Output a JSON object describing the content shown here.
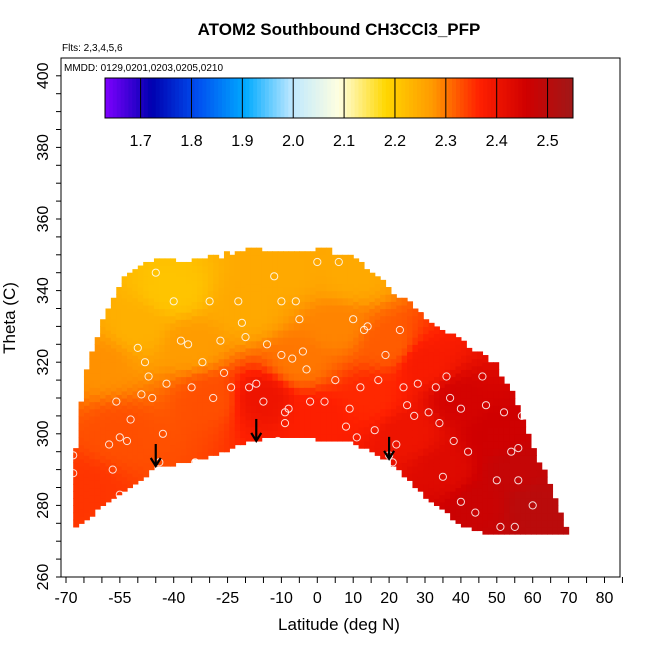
{
  "chart_data": {
    "type": "heatmap",
    "title": "ATOM2 Southbound CH3CCl3_PFP",
    "flights_note": "Flts: 2,3,4,5,6",
    "dates_note": "MMDD: 0129,0201,0203,0205,0210",
    "xlabel": "Latitude (deg N)",
    "ylabel": "Theta (C)",
    "xlim": [
      -70,
      85
    ],
    "ylim": [
      260,
      400
    ],
    "x_ticks": [
      -70,
      -55,
      -40,
      -25,
      -10,
      0,
      10,
      20,
      30,
      40,
      50,
      60,
      70,
      80
    ],
    "y_ticks": [
      260,
      280,
      300,
      320,
      340,
      360,
      380,
      400
    ],
    "colorbar": {
      "min": 1.63,
      "max": 2.55,
      "ticks": [
        1.7,
        1.8,
        1.9,
        2.0,
        2.1,
        2.2,
        2.3,
        2.4,
        2.5
      ],
      "colors": [
        "#7f00ff",
        "#0000b0",
        "#0050f0",
        "#00aaff",
        "#bfe8ff",
        "#ffffe0",
        "#ffd700",
        "#ff9900",
        "#ff2000",
        "#d00000",
        "#a01818"
      ]
    },
    "boundary": {
      "top": [
        [
          -68,
          290
        ],
        [
          -65,
          314
        ],
        [
          -60,
          330
        ],
        [
          -55,
          341
        ],
        [
          -50,
          346
        ],
        [
          -45,
          347
        ],
        [
          -30,
          348
        ],
        [
          -22,
          350
        ],
        [
          -10,
          351
        ],
        [
          0,
          351
        ],
        [
          10,
          348
        ],
        [
          20,
          340
        ],
        [
          30,
          332
        ],
        [
          40,
          325
        ],
        [
          50,
          318
        ],
        [
          55,
          310
        ],
        [
          60,
          295
        ],
        [
          65,
          285
        ],
        [
          70,
          272
        ]
      ],
      "bottom": [
        [
          -68,
          274
        ],
        [
          -60,
          280
        ],
        [
          -45,
          291
        ],
        [
          -30,
          294
        ],
        [
          -20,
          298
        ],
        [
          -10,
          300
        ],
        [
          0,
          299
        ],
        [
          10,
          298
        ],
        [
          20,
          293
        ],
        [
          30,
          283
        ],
        [
          40,
          275
        ],
        [
          50,
          272
        ],
        [
          60,
          272
        ],
        [
          70,
          272
        ]
      ]
    },
    "field": [
      {
        "lat": -65,
        "theta": 285,
        "value": 2.35
      },
      {
        "lat": -55,
        "theta": 300,
        "value": 2.33
      },
      {
        "lat": -50,
        "theta": 330,
        "value": 2.24
      },
      {
        "lat": -40,
        "theta": 340,
        "value": 2.21
      },
      {
        "lat": -35,
        "theta": 325,
        "value": 2.27
      },
      {
        "lat": -30,
        "theta": 310,
        "value": 2.33
      },
      {
        "lat": -20,
        "theta": 335,
        "value": 2.25
      },
      {
        "lat": -15,
        "theta": 310,
        "value": 2.4
      },
      {
        "lat": -10,
        "theta": 345,
        "value": 2.25
      },
      {
        "lat": -5,
        "theta": 320,
        "value": 2.3
      },
      {
        "lat": 0,
        "theta": 305,
        "value": 2.37
      },
      {
        "lat": 5,
        "theta": 330,
        "value": 2.29
      },
      {
        "lat": 10,
        "theta": 345,
        "value": 2.25
      },
      {
        "lat": 15,
        "theta": 310,
        "value": 2.36
      },
      {
        "lat": 20,
        "theta": 325,
        "value": 2.32
      },
      {
        "lat": 25,
        "theta": 300,
        "value": 2.4
      },
      {
        "lat": 30,
        "theta": 320,
        "value": 2.38
      },
      {
        "lat": 35,
        "theta": 290,
        "value": 2.43
      },
      {
        "lat": 40,
        "theta": 310,
        "value": 2.45
      },
      {
        "lat": 45,
        "theta": 280,
        "value": 2.47
      },
      {
        "lat": 50,
        "theta": 300,
        "value": 2.46
      },
      {
        "lat": 55,
        "theta": 290,
        "value": 2.48
      },
      {
        "lat": 60,
        "theta": 280,
        "value": 2.5
      },
      {
        "lat": 65,
        "theta": 276,
        "value": 2.5
      },
      {
        "lat": -60,
        "theta": 320,
        "value": 2.28
      }
    ],
    "samples": [
      [
        -68,
        289
      ],
      [
        -68,
        294
      ],
      [
        -58,
        297
      ],
      [
        -57,
        290
      ],
      [
        -55,
        283
      ],
      [
        -55,
        299
      ],
      [
        -56,
        309
      ],
      [
        -53,
        298
      ],
      [
        -52,
        304
      ],
      [
        -50,
        324
      ],
      [
        -48,
        320
      ],
      [
        -49,
        311
      ],
      [
        -47,
        316
      ],
      [
        -46,
        310
      ],
      [
        -45,
        345
      ],
      [
        -44,
        292
      ],
      [
        -43,
        300
      ],
      [
        -42,
        314
      ],
      [
        -40,
        337
      ],
      [
        -38,
        326
      ],
      [
        -36,
        325
      ],
      [
        -35,
        313
      ],
      [
        -34,
        292
      ],
      [
        -32,
        320
      ],
      [
        -30,
        337
      ],
      [
        -29,
        310
      ],
      [
        -27,
        326
      ],
      [
        -26,
        317
      ],
      [
        -24,
        313
      ],
      [
        -22,
        337
      ],
      [
        -20,
        327
      ],
      [
        -19,
        313
      ],
      [
        -17,
        314
      ],
      [
        -15,
        309
      ],
      [
        -14,
        325
      ],
      [
        -12,
        344
      ],
      [
        -11,
        298
      ],
      [
        -10,
        322
      ],
      [
        -10,
        337
      ],
      [
        -9,
        306
      ],
      [
        -9,
        303
      ],
      [
        -8,
        307
      ],
      [
        -7,
        321
      ],
      [
        -6,
        337
      ],
      [
        -5,
        332
      ],
      [
        -4,
        323
      ],
      [
        -3,
        318
      ],
      [
        -2,
        309
      ],
      [
        0,
        348
      ],
      [
        2,
        309
      ],
      [
        5,
        315
      ],
      [
        6,
        348
      ],
      [
        8,
        302
      ],
      [
        9,
        307
      ],
      [
        10,
        332
      ],
      [
        11,
        299
      ],
      [
        12,
        313
      ],
      [
        13,
        329
      ],
      [
        14,
        330
      ],
      [
        16,
        301
      ],
      [
        17,
        315
      ],
      [
        19,
        322
      ],
      [
        20,
        294
      ],
      [
        21,
        292
      ],
      [
        22,
        297
      ],
      [
        23,
        329
      ],
      [
        24,
        313
      ],
      [
        25,
        308
      ],
      [
        27,
        305
      ],
      [
        28,
        314
      ],
      [
        30,
        335
      ],
      [
        31,
        306
      ],
      [
        33,
        313
      ],
      [
        34,
        303
      ],
      [
        35,
        288
      ],
      [
        36,
        316
      ],
      [
        37,
        310
      ],
      [
        38,
        298
      ],
      [
        40,
        307
      ],
      [
        40,
        281
      ],
      [
        42,
        295
      ],
      [
        44,
        278
      ],
      [
        46,
        316
      ],
      [
        47,
        308
      ],
      [
        48,
        324
      ],
      [
        50,
        287
      ],
      [
        51,
        274
      ],
      [
        52,
        306
      ],
      [
        53,
        321
      ],
      [
        54,
        295
      ],
      [
        55,
        274
      ],
      [
        56,
        287
      ],
      [
        57,
        305
      ],
      [
        58,
        314
      ],
      [
        60,
        280
      ],
      [
        56,
        296
      ],
      [
        -21,
        331
      ]
    ],
    "arrows": [
      {
        "lat": -45,
        "theta": 291
      },
      {
        "lat": -17,
        "theta": 298
      },
      {
        "lat": 20,
        "theta": 293
      }
    ]
  }
}
